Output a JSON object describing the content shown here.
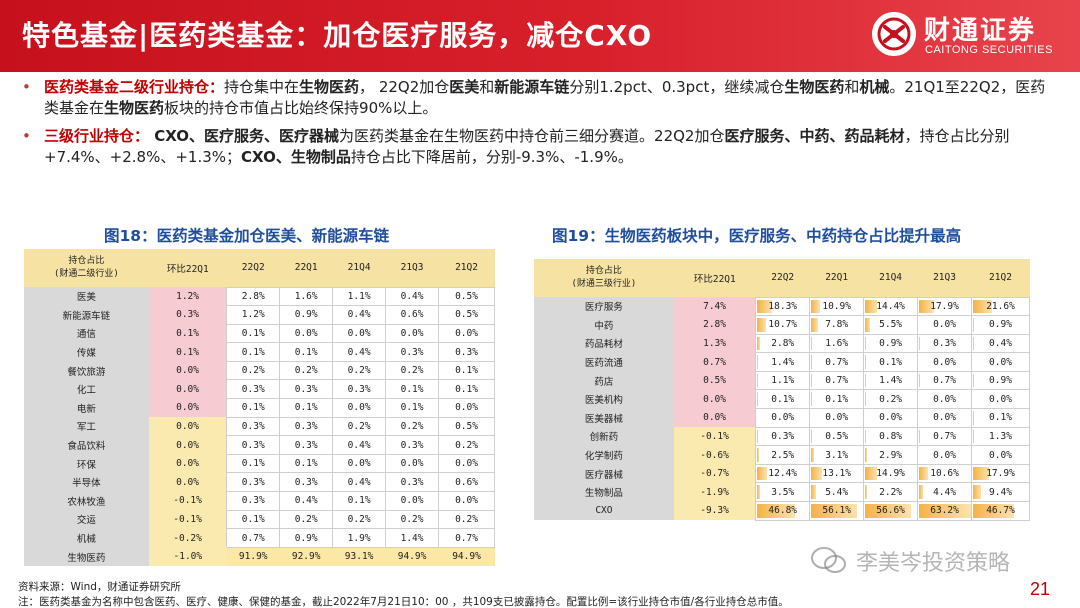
{
  "header": {
    "title": "特色基金|医药类基金：加仓医疗服务，减仓CXO",
    "logo_cn": "财通证券",
    "logo_en": "CAITONG SECURITIES"
  },
  "bullets": [
    {
      "segments": [
        {
          "t": "医药类基金二级行业持仓：",
          "s": "red"
        },
        {
          "t": "持仓集中在",
          "s": ""
        },
        {
          "t": "生物医药",
          "s": "b"
        },
        {
          "t": "， 22Q2加仓",
          "s": ""
        },
        {
          "t": "医美",
          "s": "b"
        },
        {
          "t": "和",
          "s": ""
        },
        {
          "t": "新能源车链",
          "s": "b"
        },
        {
          "t": "分别1.2pct、0.3pct，继续减仓",
          "s": ""
        },
        {
          "t": "生物医药",
          "s": "b"
        },
        {
          "t": "和",
          "s": ""
        },
        {
          "t": "机械",
          "s": "b"
        },
        {
          "t": "。21Q1至22Q2，医药类基金在",
          "s": ""
        },
        {
          "t": "生物医药",
          "s": "b"
        },
        {
          "t": "板块的持仓市值占比始终保持90%以上。",
          "s": ""
        }
      ]
    },
    {
      "segments": [
        {
          "t": "三级行业持仓：",
          "s": "red"
        },
        {
          "t": " CXO、医疗服务、医疗器械",
          "s": "b"
        },
        {
          "t": "为医药类基金在生物医药中持仓前三细分赛道。22Q2加仓",
          "s": ""
        },
        {
          "t": "医疗服务、中药、药品耗材",
          "s": "b"
        },
        {
          "t": "，持仓占比分别+7.4%、+2.8%、+1.3%；",
          "s": ""
        },
        {
          "t": "CXO、生物制品",
          "s": "b"
        },
        {
          "t": "持仓占比下降居前，分别-9.3%、-1.9%。",
          "s": ""
        }
      ]
    }
  ],
  "fig18": {
    "title": "图18：医药类基金加仓医美、新能源车链",
    "header": {
      "name": "持仓占比\n(财通二级行业)",
      "change": "环比22Q1",
      "cols": [
        "22Q2",
        "22Q1",
        "21Q4",
        "21Q3",
        "21Q2"
      ]
    },
    "rows": [
      {
        "name": "医美",
        "change": "1.2%",
        "vals": [
          "2.8%",
          "1.6%",
          "1.1%",
          "0.4%",
          "0.5%"
        ]
      },
      {
        "name": "新能源车链",
        "change": "0.3%",
        "vals": [
          "1.2%",
          "0.9%",
          "0.4%",
          "0.6%",
          "0.5%"
        ]
      },
      {
        "name": "通信",
        "change": "0.1%",
        "vals": [
          "0.1%",
          "0.0%",
          "0.0%",
          "0.0%",
          "0.0%"
        ]
      },
      {
        "name": "传媒",
        "change": "0.1%",
        "vals": [
          "0.1%",
          "0.1%",
          "0.4%",
          "0.3%",
          "0.3%"
        ]
      },
      {
        "name": "餐饮旅游",
        "change": "0.0%",
        "vals": [
          "0.2%",
          "0.2%",
          "0.2%",
          "0.2%",
          "0.1%"
        ]
      },
      {
        "name": "化工",
        "change": "0.0%",
        "vals": [
          "0.3%",
          "0.3%",
          "0.3%",
          "0.1%",
          "0.1%"
        ]
      },
      {
        "name": "电新",
        "change": "0.0%",
        "vals": [
          "0.1%",
          "0.1%",
          "0.0%",
          "0.1%",
          "0.0%"
        ]
      },
      {
        "name": "军工",
        "change": "0.0%",
        "vals": [
          "0.3%",
          "0.3%",
          "0.2%",
          "0.2%",
          "0.5%"
        ]
      },
      {
        "name": "食品饮料",
        "change": "0.0%",
        "vals": [
          "0.3%",
          "0.3%",
          "0.4%",
          "0.3%",
          "0.2%"
        ]
      },
      {
        "name": "环保",
        "change": "0.0%",
        "vals": [
          "0.1%",
          "0.1%",
          "0.0%",
          "0.0%",
          "0.0%"
        ]
      },
      {
        "name": "半导体",
        "change": "0.0%",
        "vals": [
          "0.3%",
          "0.3%",
          "0.4%",
          "0.3%",
          "0.6%"
        ]
      },
      {
        "name": "农林牧渔",
        "change": "-0.1%",
        "vals": [
          "0.3%",
          "0.4%",
          "0.1%",
          "0.0%",
          "0.0%"
        ]
      },
      {
        "name": "交运",
        "change": "-0.1%",
        "vals": [
          "0.1%",
          "0.2%",
          "0.2%",
          "0.2%",
          "0.2%"
        ]
      },
      {
        "name": "机械",
        "change": "-0.2%",
        "vals": [
          "0.7%",
          "0.9%",
          "1.9%",
          "1.4%",
          "0.7%"
        ]
      },
      {
        "name": "生物医药",
        "change": "-1.0%",
        "vals": [
          "91.9%",
          "92.9%",
          "93.1%",
          "94.9%",
          "94.9%"
        ]
      }
    ]
  },
  "fig19": {
    "title": "图19：生物医药板块中，医疗服务、中药持仓占比提升最高",
    "header": {
      "name": "持仓占比\n(财通三级行业)",
      "change": "环比22Q1",
      "cols": [
        "22Q2",
        "22Q1",
        "21Q4",
        "21Q3",
        "21Q2"
      ]
    },
    "rows": [
      {
        "name": "医疗服务",
        "change": "7.4%",
        "vals": [
          "18.3%",
          "10.9%",
          "14.4%",
          "17.9%",
          "21.6%"
        ]
      },
      {
        "name": "中药",
        "change": "2.8%",
        "vals": [
          "10.7%",
          "7.8%",
          "5.5%",
          "0.0%",
          "0.9%"
        ]
      },
      {
        "name": "药品耗材",
        "change": "1.3%",
        "vals": [
          "2.8%",
          "1.6%",
          "0.9%",
          "0.3%",
          "0.4%"
        ]
      },
      {
        "name": "医药流通",
        "change": "0.7%",
        "vals": [
          "1.4%",
          "0.7%",
          "0.1%",
          "0.0%",
          "0.0%"
        ]
      },
      {
        "name": "药店",
        "change": "0.5%",
        "vals": [
          "1.1%",
          "0.7%",
          "1.4%",
          "0.7%",
          "0.9%"
        ]
      },
      {
        "name": "医美机构",
        "change": "0.0%",
        "vals": [
          "0.1%",
          "0.1%",
          "0.2%",
          "0.0%",
          "0.0%"
        ]
      },
      {
        "name": "医美器械",
        "change": "0.0%",
        "vals": [
          "0.0%",
          "0.0%",
          "0.0%",
          "0.0%",
          "0.1%"
        ]
      },
      {
        "name": "创新药",
        "change": "-0.1%",
        "vals": [
          "0.3%",
          "0.5%",
          "0.8%",
          "0.7%",
          "1.3%"
        ]
      },
      {
        "name": "化学制药",
        "change": "-0.6%",
        "vals": [
          "2.5%",
          "3.1%",
          "2.9%",
          "0.0%",
          "0.0%"
        ]
      },
      {
        "name": "医疗器械",
        "change": "-0.7%",
        "vals": [
          "12.4%",
          "13.1%",
          "14.9%",
          "10.6%",
          "17.9%"
        ]
      },
      {
        "name": "生物制品",
        "change": "-1.9%",
        "vals": [
          "3.5%",
          "5.4%",
          "2.2%",
          "4.4%",
          "9.4%"
        ]
      },
      {
        "name": "CXO",
        "change": "-9.3%",
        "vals": [
          "46.8%",
          "56.1%",
          "56.6%",
          "63.2%",
          "46.7%"
        ]
      }
    ]
  },
  "footer": {
    "source": "资料来源：Wind，财通证券研究所",
    "note": "注：医药类基金为名称中包含医药、医疗、健康、保健的基金，截止2022年7月21日10：00 ，共109支已披露持仓。配置比例=该行业持仓市值/各行业持仓总市值。",
    "page": "21"
  },
  "watermark": "李美岑投资策略"
}
